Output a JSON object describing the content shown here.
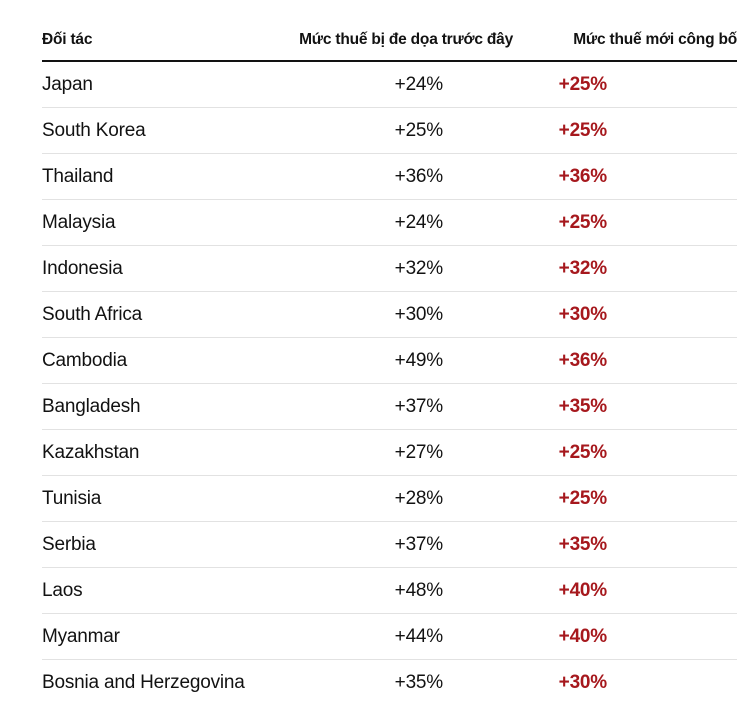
{
  "table": {
    "headers": {
      "partner": "Đối tác",
      "threatened": "Mức thuế bị đe dọa trước đây",
      "announced": "Mức thuế mới công bố"
    },
    "rows": [
      {
        "partner": "Japan",
        "threatened": "+24%",
        "announced": "+25%"
      },
      {
        "partner": "South Korea",
        "threatened": "+25%",
        "announced": "+25%"
      },
      {
        "partner": "Thailand",
        "threatened": "+36%",
        "announced": "+36%"
      },
      {
        "partner": "Malaysia",
        "threatened": "+24%",
        "announced": "+25%"
      },
      {
        "partner": "Indonesia",
        "threatened": "+32%",
        "announced": "+32%"
      },
      {
        "partner": "South Africa",
        "threatened": "+30%",
        "announced": "+30%"
      },
      {
        "partner": "Cambodia",
        "threatened": "+49%",
        "announced": "+36%"
      },
      {
        "partner": "Bangladesh",
        "threatened": "+37%",
        "announced": "+35%"
      },
      {
        "partner": "Kazakhstan",
        "threatened": "+27%",
        "announced": "+25%"
      },
      {
        "partner": "Tunisia",
        "threatened": "+28%",
        "announced": "+25%"
      },
      {
        "partner": "Serbia",
        "threatened": "+37%",
        "announced": "+35%"
      },
      {
        "partner": "Laos",
        "threatened": "+48%",
        "announced": "+40%"
      },
      {
        "partner": "Myanmar",
        "threatened": "+44%",
        "announced": "+40%"
      },
      {
        "partner": "Bosnia and Herzegovina",
        "threatened": "+35%",
        "announced": "+30%"
      }
    ]
  },
  "colors": {
    "text": "#121212",
    "announced_red": "#a6181d",
    "header_rule": "#121212",
    "row_divider": "#e2e2e2"
  },
  "chart_data": {
    "type": "table",
    "title": "",
    "columns": [
      "Đối tác",
      "Mức thuế bị đe dọa trước đây",
      "Mức thuế mới công bố"
    ],
    "categories": [
      "Japan",
      "South Korea",
      "Thailand",
      "Malaysia",
      "Indonesia",
      "South Africa",
      "Cambodia",
      "Bangladesh",
      "Kazakhstan",
      "Tunisia",
      "Serbia",
      "Laos",
      "Myanmar",
      "Bosnia and Herzegovina"
    ],
    "series": [
      {
        "name": "Mức thuế bị đe dọa trước đây",
        "values": [
          24,
          25,
          36,
          24,
          32,
          30,
          49,
          37,
          27,
          28,
          37,
          48,
          44,
          35
        ]
      },
      {
        "name": "Mức thuế mới công bố",
        "values": [
          25,
          25,
          36,
          25,
          32,
          30,
          36,
          35,
          25,
          25,
          35,
          40,
          40,
          30
        ]
      }
    ],
    "value_format": "+{v}%",
    "rows": [
      [
        "Japan",
        "+24%",
        "+25%"
      ],
      [
        "South Korea",
        "+25%",
        "+25%"
      ],
      [
        "Thailand",
        "+36%",
        "+36%"
      ],
      [
        "Malaysia",
        "+24%",
        "+25%"
      ],
      [
        "Indonesia",
        "+32%",
        "+32%"
      ],
      [
        "South Africa",
        "+30%",
        "+30%"
      ],
      [
        "Cambodia",
        "+49%",
        "+36%"
      ],
      [
        "Bangladesh",
        "+37%",
        "+35%"
      ],
      [
        "Kazakhstan",
        "+27%",
        "+25%"
      ],
      [
        "Tunisia",
        "+28%",
        "+25%"
      ],
      [
        "Serbia",
        "+37%",
        "+35%"
      ],
      [
        "Laos",
        "+48%",
        "+40%"
      ],
      [
        "Myanmar",
        "+44%",
        "+40%"
      ],
      [
        "Bosnia and Herzegovina",
        "+35%",
        "+30%"
      ]
    ]
  }
}
